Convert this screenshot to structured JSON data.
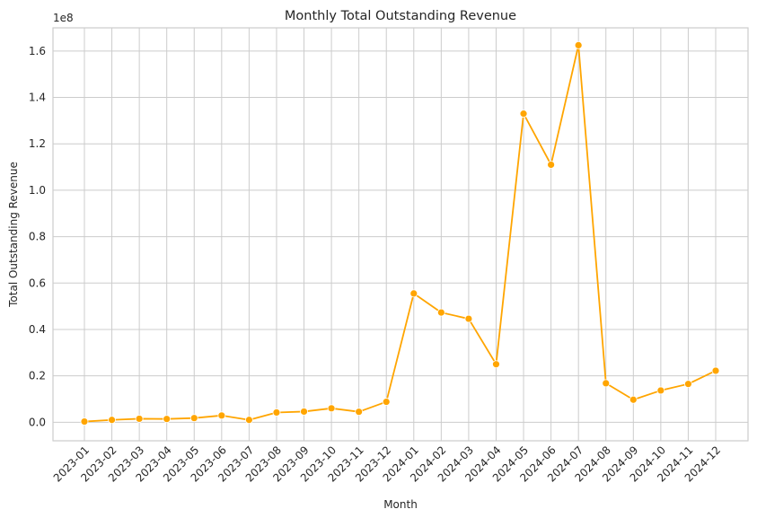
{
  "chart_data": {
    "type": "line",
    "title": "Monthly Total Outstanding Revenue",
    "xlabel": "Month",
    "ylabel": "Total Outstanding Revenue",
    "y_offset_label": "1e8",
    "ylim": [
      -0.08,
      1.7
    ],
    "y_ticks": [
      0.0,
      0.2,
      0.4,
      0.6,
      0.8,
      1.0,
      1.2,
      1.4,
      1.6
    ],
    "y_tick_labels": [
      "0.0",
      "0.2",
      "0.4",
      "0.6",
      "0.8",
      "1.0",
      "1.2",
      "1.4",
      "1.6"
    ],
    "grid": true,
    "line_color": "#FFA500",
    "categories": [
      "2023-01",
      "2023-02",
      "2023-03",
      "2023-04",
      "2023-05",
      "2023-06",
      "2023-07",
      "2023-08",
      "2023-09",
      "2023-10",
      "2023-11",
      "2023-12",
      "2024-01",
      "2024-02",
      "2024-03",
      "2024-04",
      "2024-05",
      "2024-06",
      "2024-07",
      "2024-08",
      "2024-09",
      "2024-10",
      "2024-11",
      "2024-12"
    ],
    "series": [
      {
        "values": [
          0.003,
          0.01,
          0.015,
          0.014,
          0.018,
          0.029,
          0.01,
          0.042,
          0.046,
          0.06,
          0.045,
          0.088,
          0.555,
          0.473,
          0.446,
          0.25,
          1.33,
          1.11,
          1.625,
          0.168,
          0.097,
          0.137,
          0.165,
          0.222
        ]
      }
    ]
  }
}
